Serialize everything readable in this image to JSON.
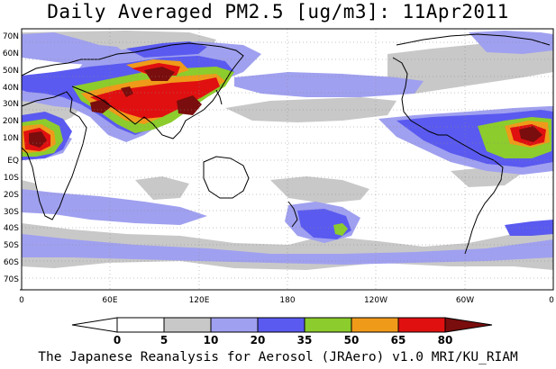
{
  "title": "Daily Averaged PM2.5 [ug/m3]: 11Apr2011",
  "footer": "The Japanese Reanalysis for Aerosol (JRAero) v1.0 MRI/KU_RIAM",
  "lat_labels": [
    "70N",
    "60N",
    "50N",
    "40N",
    "30N",
    "20N",
    "10N",
    "EQ",
    "10S",
    "20S",
    "30S",
    "40S",
    "50S",
    "60S",
    "70S"
  ],
  "lon_labels": [
    "0",
    "60E",
    "120E",
    "180",
    "120W",
    "60W",
    "0"
  ],
  "colorbar": {
    "labels": [
      "0",
      "5",
      "10",
      "20",
      "35",
      "50",
      "65",
      "80"
    ],
    "colors": [
      "#ffffff",
      "#c8c8c8",
      "#a0a0f0",
      "#5a5af0",
      "#8ccc2c",
      "#f09a1a",
      "#e01010",
      "#7a0d0d"
    ]
  }
}
